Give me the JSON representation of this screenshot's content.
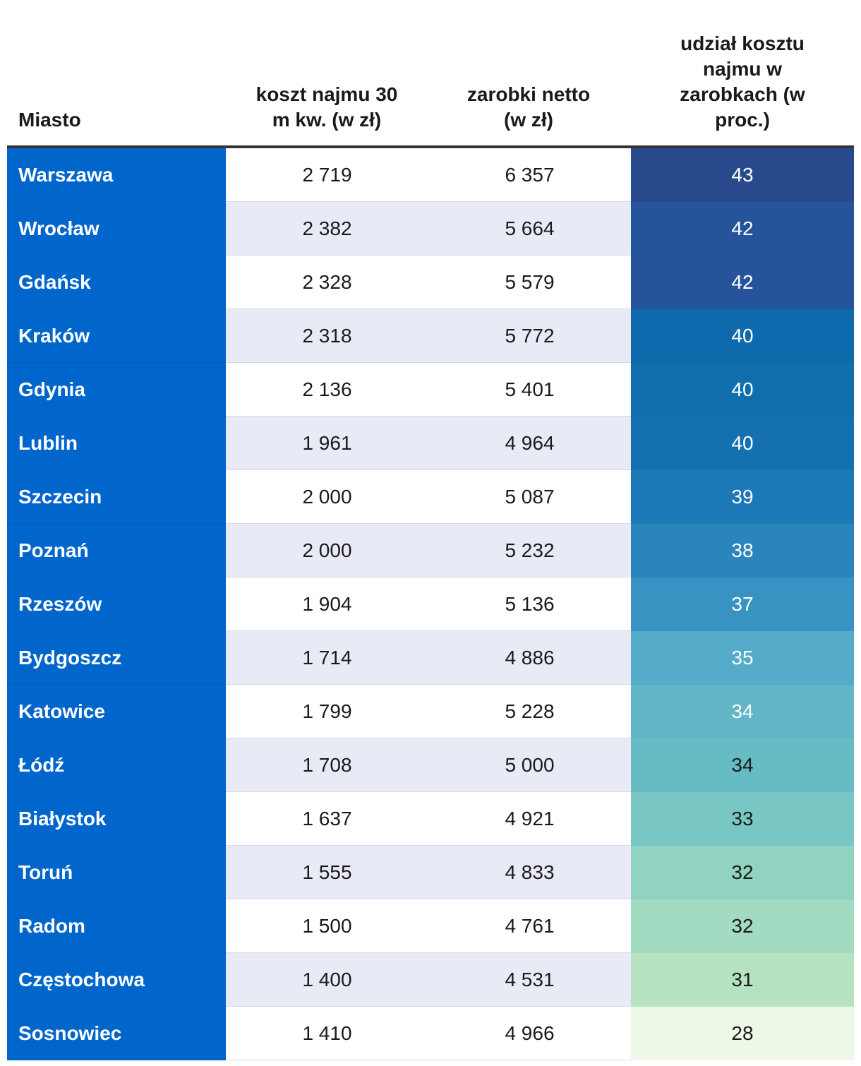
{
  "chart_data": {
    "type": "table",
    "columns": [
      "Miasto",
      "koszt najmu 30 m kw. (w zł)",
      "zarobki netto (w zł)",
      "udział kosztu najmu w zarobkach (w proc.)"
    ],
    "rows": [
      {
        "city": "Warszawa",
        "rent": "2 719",
        "net": "6 357",
        "share": 43,
        "share_color": "#284a8c",
        "share_text_color": "#ffffff"
      },
      {
        "city": "Wrocław",
        "rent": "2 382",
        "net": "5 664",
        "share": 42,
        "share_color": "#25549a",
        "share_text_color": "#ffffff"
      },
      {
        "city": "Gdańsk",
        "rent": "2 328",
        "net": "5 579",
        "share": 42,
        "share_color": "#25549a",
        "share_text_color": "#ffffff"
      },
      {
        "city": "Kraków",
        "rent": "2 318",
        "net": "5 772",
        "share": 40,
        "share_color": "#0f69ad",
        "share_text_color": "#ffffff"
      },
      {
        "city": "Gdynia",
        "rent": "2 136",
        "net": "5 401",
        "share": 40,
        "share_color": "#116ead",
        "share_text_color": "#ffffff"
      },
      {
        "city": "Lublin",
        "rent": "1 961",
        "net": "4 964",
        "share": 40,
        "share_color": "#1470b1",
        "share_text_color": "#ffffff"
      },
      {
        "city": "Szczecin",
        "rent": "2 000",
        "net": "5 087",
        "share": 39,
        "share_color": "#1d78b8",
        "share_text_color": "#ffffff"
      },
      {
        "city": "Poznań",
        "rent": "2 000",
        "net": "5 232",
        "share": 38,
        "share_color": "#2a85bd",
        "share_text_color": "#ffffff"
      },
      {
        "city": "Rzeszów",
        "rent": "1 904",
        "net": "5 136",
        "share": 37,
        "share_color": "#3893c2",
        "share_text_color": "#ffffff"
      },
      {
        "city": "Bydgoszcz",
        "rent": "1 714",
        "net": "4 886",
        "share": 35,
        "share_color": "#54acca",
        "share_text_color": "#ffffff"
      },
      {
        "city": "Katowice",
        "rent": "1 799",
        "net": "5 228",
        "share": 34,
        "share_color": "#61b5c7",
        "share_text_color": "#ffffff"
      },
      {
        "city": "Łódź",
        "rent": "1 708",
        "net": "5 000",
        "share": 34,
        "share_color": "#67bbc5",
        "share_text_color": "#1a1a1a"
      },
      {
        "city": "Białystok",
        "rent": "1 637",
        "net": "4 921",
        "share": 33,
        "share_color": "#78c7c4",
        "share_text_color": "#1a1a1a"
      },
      {
        "city": "Toruń",
        "rent": "1 555",
        "net": "4 833",
        "share": 32,
        "share_color": "#90d3c0",
        "share_text_color": "#1a1a1a"
      },
      {
        "city": "Radom",
        "rent": "1 500",
        "net": "4 761",
        "share": 32,
        "share_color": "#a3dbc2",
        "share_text_color": "#1a1a1a"
      },
      {
        "city": "Częstochowa",
        "rent": "1 400",
        "net": "4 531",
        "share": 31,
        "share_color": "#b5e3c0",
        "share_text_color": "#1a1a1a"
      },
      {
        "city": "Sosnowiec",
        "rent": "1 410",
        "net": "4 966",
        "share": 28,
        "share_color": "#eef8e9",
        "share_text_color": "#1a1a1a"
      }
    ]
  },
  "header": {
    "city": [
      "Miasto"
    ],
    "rent": [
      "koszt najmu 30",
      "m kw. (w zł)"
    ],
    "net": [
      "zarobki netto",
      "(w zł)"
    ],
    "share": [
      "udział kosztu",
      "najmu w",
      "zarobkach (w",
      "proc.)"
    ]
  },
  "colors": {
    "city_column": "#0066cc",
    "even_row": "#e8eaf6",
    "odd_row": "#ffffff"
  }
}
